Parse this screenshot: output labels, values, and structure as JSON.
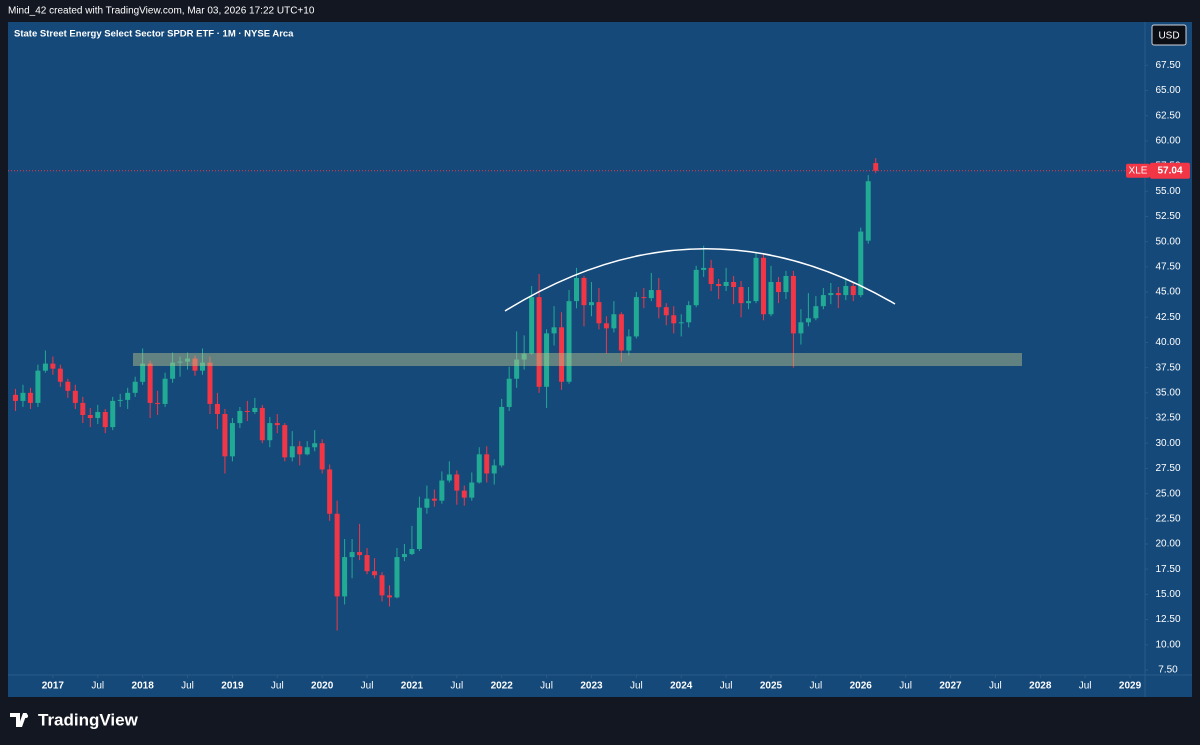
{
  "header": {
    "text": "Mind_42 created with TradingView.com, Mar 03, 2026 17:22 UTC+10"
  },
  "footer": {
    "brand": "TradingView"
  },
  "chart_data": {
    "type": "candlestick",
    "title": "State Street Energy Select Sector SPDR ETF · 1M · NYSE Arca",
    "currency": "USD",
    "symbol": "XLE",
    "up_color": "#22ab94",
    "down_color": "#f23645",
    "x": [
      "2016-08",
      "2016-09",
      "2016-10",
      "2016-11",
      "2016-12",
      "2017-01",
      "2017-02",
      "2017-03",
      "2017-04",
      "2017-05",
      "2017-06",
      "2017-07",
      "2017-08",
      "2017-09",
      "2017-10",
      "2017-11",
      "2017-12",
      "2018-01",
      "2018-02",
      "2018-03",
      "2018-04",
      "2018-05",
      "2018-06",
      "2018-07",
      "2018-08",
      "2018-09",
      "2018-10",
      "2018-11",
      "2018-12",
      "2019-01",
      "2019-02",
      "2019-03",
      "2019-04",
      "2019-05",
      "2019-06",
      "2019-07",
      "2019-08",
      "2019-09",
      "2019-10",
      "2019-11",
      "2019-12",
      "2020-01",
      "2020-02",
      "2020-03",
      "2020-04",
      "2020-05",
      "2020-06",
      "2020-07",
      "2020-08",
      "2020-09",
      "2020-10",
      "2020-11",
      "2020-12",
      "2021-01",
      "2021-02",
      "2021-03",
      "2021-04",
      "2021-05",
      "2021-06",
      "2021-07",
      "2021-08",
      "2021-09",
      "2021-10",
      "2021-11",
      "2021-12",
      "2022-01",
      "2022-02",
      "2022-03",
      "2022-04",
      "2022-05",
      "2022-06",
      "2022-07",
      "2022-08",
      "2022-09",
      "2022-10",
      "2022-11",
      "2022-12",
      "2023-01",
      "2023-02",
      "2023-03",
      "2023-04",
      "2023-05",
      "2023-06",
      "2023-07",
      "2023-08",
      "2023-09",
      "2023-10",
      "2023-11",
      "2023-12",
      "2024-01",
      "2024-02",
      "2024-03",
      "2024-04",
      "2024-05",
      "2024-06",
      "2024-07",
      "2024-08",
      "2024-09",
      "2024-10",
      "2024-11",
      "2024-12",
      "2025-01",
      "2025-02",
      "2025-03",
      "2025-04",
      "2025-05",
      "2025-06",
      "2025-07",
      "2025-08",
      "2025-09",
      "2025-10",
      "2025-11",
      "2025-12",
      "2026-01",
      "2026-02",
      "2026-03"
    ],
    "open": [
      34.8,
      34.2,
      35.0,
      34.0,
      37.2,
      37.9,
      37.4,
      36.1,
      35.2,
      34.0,
      32.8,
      32.5,
      33.1,
      31.6,
      34.2,
      34.3,
      35.0,
      36.1,
      37.9,
      34.0,
      33.9,
      36.4,
      38.0,
      38.1,
      38.4,
      37.2,
      38.0,
      33.9,
      32.9,
      28.7,
      32.0,
      33.2,
      33.1,
      33.5,
      30.3,
      32.0,
      31.8,
      28.6,
      29.7,
      28.9,
      29.6,
      30.0,
      27.4,
      23.0,
      14.8,
      18.7,
      19.2,
      18.9,
      17.3,
      16.9,
      14.9,
      14.7,
      18.7,
      19.0,
      19.5,
      23.6,
      24.5,
      24.3,
      26.3,
      26.9,
      25.3,
      24.6,
      26.1,
      28.9,
      27.0,
      27.8,
      33.6,
      36.4,
      38.3,
      38.9,
      44.5,
      35.6,
      40.9,
      41.5,
      36.1,
      44.1,
      46.4,
      43.7,
      44.0,
      41.9,
      41.4,
      42.8,
      39.2,
      40.6,
      44.5,
      44.4,
      45.2,
      43.5,
      42.7,
      41.9,
      42.0,
      43.7,
      47.2,
      47.4,
      45.8,
      45.6,
      46.0,
      45.5,
      43.9,
      44.1,
      48.4,
      42.8,
      46.0,
      45.0,
      46.6,
      40.9,
      42.0,
      42.4,
      43.6,
      44.7,
      44.9,
      44.7,
      45.6,
      44.7,
      50.1,
      57.8
    ],
    "high": [
      35.4,
      35.8,
      35.5,
      37.8,
      39.2,
      38.6,
      37.8,
      36.4,
      35.8,
      34.6,
      33.5,
      33.8,
      33.4,
      34.6,
      34.9,
      35.5,
      36.6,
      39.4,
      38.2,
      35.2,
      37.0,
      39.0,
      38.6,
      39.0,
      38.7,
      39.4,
      38.6,
      35.0,
      33.4,
      32.5,
      33.6,
      34.2,
      34.5,
      33.8,
      32.6,
      32.9,
      32.0,
      31.2,
      30.2,
      30.2,
      31.3,
      30.4,
      27.9,
      24.3,
      20.5,
      20.5,
      22.0,
      19.6,
      18.6,
      17.2,
      15.9,
      19.6,
      20.0,
      21.8,
      24.7,
      25.8,
      25.4,
      27.2,
      28.2,
      27.3,
      25.8,
      27.1,
      29.6,
      29.7,
      28.4,
      34.4,
      37.6,
      41.1,
      40.7,
      45.6,
      46.8,
      41.3,
      43.6,
      43.0,
      45.2,
      47.4,
      46.6,
      46.0,
      45.4,
      42.6,
      44.1,
      43.0,
      41.3,
      45.0,
      45.4,
      46.9,
      46.4,
      43.9,
      43.6,
      42.8,
      44.1,
      47.6,
      49.6,
      48.2,
      46.3,
      47.4,
      46.6,
      46.1,
      45.5,
      48.9,
      48.7,
      47.6,
      46.5,
      47.1,
      47.1,
      43.3,
      44.9,
      44.6,
      45.4,
      45.9,
      45.5,
      46.4,
      45.9,
      51.4,
      56.6,
      58.3
    ],
    "low": [
      33.2,
      33.6,
      33.4,
      33.6,
      37.0,
      36.8,
      35.6,
      34.5,
      33.4,
      32.0,
      31.6,
      31.9,
      31.0,
      31.3,
      33.6,
      33.4,
      34.6,
      35.8,
      32.5,
      32.8,
      33.6,
      36.0,
      36.6,
      37.3,
      36.7,
      36.8,
      32.9,
      31.4,
      27.0,
      28.2,
      31.5,
      32.2,
      32.9,
      30.0,
      29.6,
      31.0,
      28.2,
      28.2,
      27.8,
      28.8,
      29.2,
      27.0,
      22.3,
      11.4,
      14.0,
      16.6,
      18.4,
      17.0,
      16.6,
      14.3,
      13.8,
      14.6,
      18.3,
      18.9,
      19.3,
      23.0,
      23.7,
      24.0,
      26.1,
      23.9,
      23.8,
      24.3,
      26.0,
      26.1,
      25.9,
      27.6,
      33.2,
      35.5,
      37.3,
      38.8,
      35.0,
      33.5,
      39.7,
      35.3,
      35.9,
      43.4,
      41.6,
      42.6,
      41.3,
      38.9,
      41.0,
      38.1,
      38.7,
      40.4,
      43.4,
      44.1,
      42.4,
      41.7,
      40.9,
      40.6,
      41.5,
      43.5,
      46.5,
      45.1,
      44.3,
      45.1,
      43.8,
      42.5,
      43.3,
      43.9,
      42.2,
      42.6,
      43.9,
      44.3,
      37.5,
      39.8,
      41.6,
      42.2,
      43.3,
      43.8,
      43.4,
      44.2,
      44.1,
      44.5,
      49.8,
      56.8
    ],
    "close": [
      34.2,
      35.0,
      34.0,
      37.2,
      37.9,
      37.4,
      36.1,
      35.2,
      34.0,
      32.8,
      32.5,
      33.1,
      31.6,
      34.2,
      34.3,
      35.0,
      36.1,
      37.9,
      34.0,
      33.9,
      36.4,
      38.0,
      38.1,
      38.4,
      37.2,
      38.0,
      33.9,
      32.9,
      28.7,
      32.0,
      33.2,
      33.1,
      33.5,
      30.3,
      32.0,
      31.8,
      28.6,
      29.7,
      28.9,
      29.6,
      30.0,
      27.4,
      23.0,
      14.8,
      18.7,
      19.2,
      18.9,
      17.3,
      16.9,
      14.9,
      14.7,
      18.7,
      19.0,
      19.5,
      23.6,
      24.5,
      24.3,
      26.3,
      26.9,
      25.3,
      24.6,
      26.1,
      28.9,
      27.0,
      27.8,
      33.6,
      36.4,
      38.3,
      38.9,
      44.5,
      35.6,
      40.9,
      41.5,
      36.1,
      44.1,
      46.4,
      43.7,
      44.0,
      41.9,
      41.4,
      42.8,
      39.2,
      40.6,
      44.5,
      44.4,
      45.2,
      43.5,
      42.7,
      41.9,
      42.0,
      43.7,
      47.2,
      47.4,
      45.8,
      45.6,
      46.0,
      45.5,
      43.9,
      44.1,
      48.4,
      42.8,
      46.0,
      45.0,
      46.6,
      40.9,
      42.0,
      42.4,
      43.6,
      44.7,
      44.9,
      44.7,
      45.6,
      44.7,
      51.0,
      56.0,
      57.04
    ],
    "xlim": [
      "2016-07",
      "2029-03"
    ],
    "xticks": [
      {
        "value": "2017-01",
        "label": "2017"
      },
      {
        "value": "2017-07",
        "label": "Jul"
      },
      {
        "value": "2018-01",
        "label": "2018"
      },
      {
        "value": "2018-07",
        "label": "Jul"
      },
      {
        "value": "2019-01",
        "label": "2019"
      },
      {
        "value": "2019-07",
        "label": "Jul"
      },
      {
        "value": "2020-01",
        "label": "2020"
      },
      {
        "value": "2020-07",
        "label": "Jul"
      },
      {
        "value": "2021-01",
        "label": "2021"
      },
      {
        "value": "2021-07",
        "label": "Jul"
      },
      {
        "value": "2022-01",
        "label": "2022"
      },
      {
        "value": "2022-07",
        "label": "Jul"
      },
      {
        "value": "2023-01",
        "label": "2023"
      },
      {
        "value": "2023-07",
        "label": "Jul"
      },
      {
        "value": "2024-01",
        "label": "2024"
      },
      {
        "value": "2024-07",
        "label": "Jul"
      },
      {
        "value": "2025-01",
        "label": "2025"
      },
      {
        "value": "2025-07",
        "label": "Jul"
      },
      {
        "value": "2026-01",
        "label": "2026"
      },
      {
        "value": "2026-07",
        "label": "Jul"
      },
      {
        "value": "2027-01",
        "label": "2027"
      },
      {
        "value": "2027-07",
        "label": "Jul"
      },
      {
        "value": "2028-01",
        "label": "2028"
      },
      {
        "value": "2028-07",
        "label": "Jul"
      },
      {
        "value": "2029-01",
        "label": "2029"
      }
    ],
    "ylim": [
      7.0,
      71.8
    ],
    "yticks": [
      {
        "value": 7.5,
        "label": "7.50"
      },
      {
        "value": 10,
        "label": "10.00"
      },
      {
        "value": 12.5,
        "label": "12.50"
      },
      {
        "value": 15,
        "label": "15.00"
      },
      {
        "value": 17.5,
        "label": "17.50"
      },
      {
        "value": 20,
        "label": "20.00"
      },
      {
        "value": 22.5,
        "label": "22.50"
      },
      {
        "value": 25,
        "label": "25.00"
      },
      {
        "value": 27.5,
        "label": "27.50"
      },
      {
        "value": 30,
        "label": "30.00"
      },
      {
        "value": 32.5,
        "label": "32.50"
      },
      {
        "value": 35,
        "label": "35.00"
      },
      {
        "value": 37.5,
        "label": "37.50"
      },
      {
        "value": 40,
        "label": "40.00"
      },
      {
        "value": 42.5,
        "label": "42.50"
      },
      {
        "value": 45,
        "label": "45.00"
      },
      {
        "value": 47.5,
        "label": "47.50"
      },
      {
        "value": 50,
        "label": "50.00"
      },
      {
        "value": 52.5,
        "label": "52.50"
      },
      {
        "value": 55,
        "label": "55.00"
      },
      {
        "value": 57.5,
        "label": "57.50"
      },
      {
        "value": 60,
        "label": "60.00"
      },
      {
        "value": 62.5,
        "label": "62.50"
      },
      {
        "value": 65,
        "label": "65.00"
      },
      {
        "value": 67.5,
        "label": "67.50"
      }
    ],
    "grid": false
  }
}
